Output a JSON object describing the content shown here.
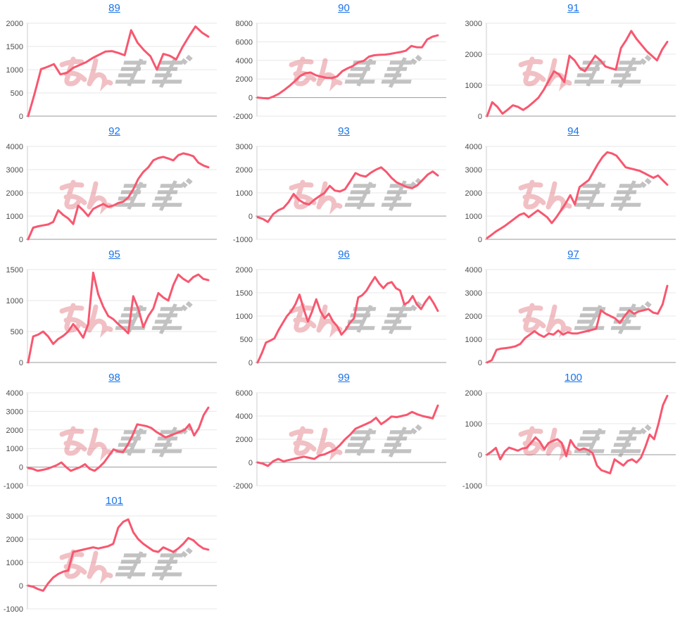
{
  "page": {
    "background": "#ffffff"
  },
  "style": {
    "line_color": "#f8576f",
    "link_color": "#1a73e8",
    "grid_color": "#e7e7e7",
    "zero_line_color": "#999999",
    "axis_line_color": "#cccccc",
    "axis_label_color": "#4d4d4d",
    "watermark_pink": "#e06a75",
    "watermark_gray": "#919191"
  },
  "watermark": {
    "logo_text": "みんかぶ",
    "pink_part": "みん",
    "gray_part": "かぶ"
  },
  "chart_data": [
    {
      "type": "line",
      "title": "89",
      "xlabel": "",
      "ylabel": "",
      "grid": true,
      "legend": false,
      "ylim": [
        0,
        2000
      ],
      "yticks": [
        0,
        500,
        1000,
        1500,
        2000
      ],
      "values": [
        0,
        480,
        1010,
        1060,
        1120,
        900,
        930,
        1040,
        1100,
        1160,
        1250,
        1320,
        1390,
        1400,
        1360,
        1310,
        1850,
        1580,
        1420,
        1290,
        1000,
        1340,
        1300,
        1220,
        1490,
        1720,
        1930,
        1800,
        1710
      ]
    },
    {
      "type": "line",
      "title": "90",
      "xlabel": "",
      "ylabel": "",
      "grid": true,
      "legend": false,
      "ylim": [
        -2000,
        8000
      ],
      "yticks": [
        -2000,
        0,
        2000,
        4000,
        6000,
        8000
      ],
      "values": [
        0,
        -60,
        -100,
        120,
        400,
        800,
        1250,
        1750,
        2300,
        2620,
        2700,
        2400,
        2250,
        2120,
        2100,
        2280,
        2850,
        3150,
        3400,
        3800,
        3950,
        4400,
        4550,
        4600,
        4620,
        4700,
        4800,
        4900,
        5050,
        5550,
        5420,
        5400,
        6250,
        6550,
        6700
      ]
    },
    {
      "type": "line",
      "title": "91",
      "xlabel": "",
      "ylabel": "",
      "grid": true,
      "legend": false,
      "ylim": [
        0,
        3000
      ],
      "yticks": [
        0,
        1000,
        2000,
        3000
      ],
      "values": [
        0,
        450,
        300,
        80,
        210,
        350,
        300,
        200,
        310,
        450,
        600,
        850,
        1150,
        1450,
        1340,
        1100,
        1950,
        1800,
        1550,
        1450,
        1700,
        1950,
        1800,
        1600,
        1550,
        1500,
        2200,
        2450,
        2750,
        2500,
        2300,
        2100,
        1950,
        1800,
        2150,
        2400
      ]
    },
    {
      "type": "line",
      "title": "92",
      "xlabel": "",
      "ylabel": "",
      "grid": true,
      "legend": false,
      "ylim": [
        0,
        4000
      ],
      "yticks": [
        0,
        1000,
        2000,
        3000,
        4000
      ],
      "values": [
        0,
        500,
        560,
        600,
        640,
        750,
        1250,
        1050,
        900,
        660,
        1450,
        1250,
        1000,
        1310,
        1420,
        1520,
        1400,
        1450,
        1560,
        1620,
        1800,
        2150,
        2600,
        2900,
        3100,
        3400,
        3500,
        3550,
        3480,
        3400,
        3620,
        3700,
        3650,
        3580,
        3300,
        3180,
        3100
      ]
    },
    {
      "type": "line",
      "title": "93",
      "xlabel": "",
      "ylabel": "",
      "grid": true,
      "legend": false,
      "ylim": [
        -1000,
        3000
      ],
      "yticks": [
        -1000,
        0,
        1000,
        2000,
        3000
      ],
      "values": [
        -50,
        -120,
        -250,
        80,
        250,
        350,
        600,
        950,
        700,
        560,
        500,
        700,
        860,
        1000,
        1300,
        1100,
        1060,
        1160,
        1500,
        1850,
        1750,
        1700,
        1870,
        2000,
        2100,
        1900,
        1650,
        1450,
        1350,
        1250,
        1200,
        1320,
        1550,
        1780,
        1920,
        1750
      ]
    },
    {
      "type": "line",
      "title": "94",
      "xlabel": "",
      "ylabel": "",
      "grid": true,
      "legend": false,
      "ylim": [
        0,
        4000
      ],
      "yticks": [
        0,
        1000,
        2000,
        3000,
        4000
      ],
      "values": [
        50,
        200,
        350,
        470,
        600,
        750,
        900,
        1050,
        1120,
        950,
        1100,
        1250,
        1100,
        950,
        700,
        950,
        1250,
        1550,
        1900,
        1500,
        2250,
        2400,
        2550,
        2900,
        3250,
        3550,
        3750,
        3700,
        3600,
        3350,
        3100,
        3050,
        3000,
        2950,
        2850,
        2750,
        2650,
        2750,
        2550,
        2350
      ]
    },
    {
      "type": "line",
      "title": "95",
      "xlabel": "",
      "ylabel": "",
      "grid": true,
      "legend": false,
      "ylim": [
        0,
        1500
      ],
      "yticks": [
        0,
        500,
        1000,
        1500
      ],
      "values": [
        0,
        420,
        450,
        500,
        420,
        300,
        380,
        430,
        500,
        620,
        520,
        400,
        620,
        1450,
        1100,
        900,
        750,
        700,
        620,
        550,
        470,
        1070,
        870,
        570,
        750,
        870,
        1120,
        1050,
        1000,
        1250,
        1420,
        1350,
        1300,
        1380,
        1420,
        1350,
        1330
      ]
    },
    {
      "type": "line",
      "title": "96",
      "xlabel": "",
      "ylabel": "",
      "grid": true,
      "legend": false,
      "ylim": [
        0,
        2000
      ],
      "yticks": [
        0,
        500,
        1000,
        1500,
        2000
      ],
      "values": [
        0,
        200,
        430,
        470,
        520,
        700,
        850,
        1000,
        1100,
        1250,
        1460,
        1150,
        880,
        1100,
        1360,
        1100,
        950,
        1050,
        880,
        780,
        600,
        700,
        850,
        950,
        1400,
        1450,
        1550,
        1700,
        1840,
        1700,
        1600,
        1700,
        1730,
        1600,
        1550,
        1250,
        1300,
        1430,
        1250,
        1150,
        1300,
        1420,
        1280,
        1110
      ]
    },
    {
      "type": "line",
      "title": "97",
      "xlabel": "",
      "ylabel": "",
      "grid": true,
      "legend": false,
      "ylim": [
        0,
        4000
      ],
      "yticks": [
        0,
        1000,
        2000,
        3000,
        4000
      ],
      "values": [
        0,
        100,
        550,
        600,
        620,
        650,
        700,
        800,
        1050,
        1200,
        1350,
        1200,
        1100,
        1250,
        1200,
        1380,
        1200,
        1300,
        1250,
        1250,
        1300,
        1350,
        1400,
        1450,
        2250,
        2100,
        2000,
        1900,
        1700,
        2000,
        2250,
        2100,
        2200,
        2250,
        2300,
        2150,
        2100,
        2500,
        3300
      ]
    },
    {
      "type": "line",
      "title": "98",
      "xlabel": "",
      "ylabel": "",
      "grid": true,
      "legend": false,
      "ylim": [
        -1000,
        4000
      ],
      "yticks": [
        -1000,
        0,
        1000,
        2000,
        3000,
        4000
      ],
      "values": [
        -50,
        -100,
        -200,
        -150,
        -100,
        0,
        100,
        250,
        0,
        -200,
        -100,
        0,
        150,
        -100,
        -200,
        0,
        250,
        600,
        950,
        850,
        800,
        1200,
        1700,
        2300,
        2250,
        2200,
        2100,
        1900,
        1750,
        1600,
        1700,
        1800,
        1900,
        2000,
        2300,
        1700,
        2100,
        2800,
        3200
      ]
    },
    {
      "type": "line",
      "title": "99",
      "xlabel": "",
      "ylabel": "",
      "grid": true,
      "legend": false,
      "ylim": [
        -2000,
        6000
      ],
      "yticks": [
        -2000,
        0,
        2000,
        4000,
        6000
      ],
      "values": [
        0,
        -100,
        -300,
        100,
        300,
        100,
        200,
        300,
        400,
        500,
        400,
        300,
        600,
        700,
        900,
        1100,
        1500,
        2000,
        2400,
        2900,
        3100,
        3300,
        3500,
        3850,
        3300,
        3600,
        3950,
        3900,
        4000,
        4100,
        4350,
        4150,
        4000,
        3900,
        3800,
        4900
      ]
    },
    {
      "type": "line",
      "title": "100",
      "xlabel": "",
      "ylabel": "",
      "grid": true,
      "legend": false,
      "ylim": [
        -1000,
        2000
      ],
      "yticks": [
        -1000,
        0,
        1000,
        2000
      ],
      "values": [
        0,
        100,
        220,
        -150,
        100,
        230,
        180,
        130,
        200,
        220,
        380,
        560,
        420,
        180,
        380,
        450,
        500,
        380,
        -50,
        470,
        250,
        150,
        200,
        150,
        50,
        -350,
        -500,
        -550,
        -600,
        -150,
        -250,
        -350,
        -200,
        -150,
        -250,
        -100,
        250,
        650,
        500,
        1000,
        1600,
        1900
      ]
    },
    {
      "type": "line",
      "title": "101",
      "xlabel": "",
      "ylabel": "",
      "grid": true,
      "legend": false,
      "ylim": [
        -1000,
        3000
      ],
      "yticks": [
        -1000,
        0,
        1000,
        2000,
        3000
      ],
      "values": [
        0,
        -50,
        -150,
        -220,
        100,
        350,
        500,
        600,
        650,
        1450,
        1500,
        1550,
        1600,
        1650,
        1600,
        1650,
        1700,
        1800,
        2500,
        2750,
        2850,
        2300,
        2000,
        1800,
        1650,
        1500,
        1450,
        1650,
        1550,
        1450,
        1600,
        1800,
        2050,
        1950,
        1750,
        1600,
        1550
      ]
    }
  ]
}
